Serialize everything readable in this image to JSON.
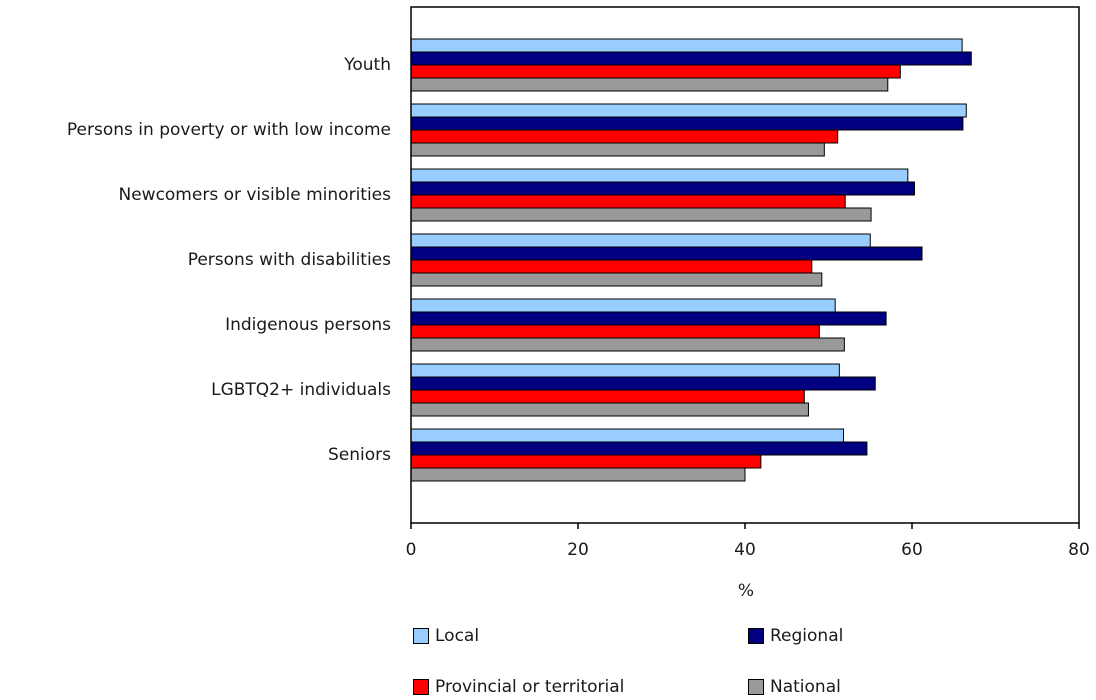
{
  "chart_data": {
    "type": "bar",
    "orientation": "horizontal",
    "categories": [
      "Youth",
      "Persons in poverty or with low income",
      "Newcomers or visible minorities",
      "Persons with disabilities",
      "Indigenous persons",
      "LGBTQ2+ individuals",
      "Seniors"
    ],
    "series": [
      {
        "name": "Local",
        "color": "#99ccff",
        "values": [
          66.0,
          66.5,
          59.5,
          55.0,
          50.8,
          51.3,
          51.8
        ]
      },
      {
        "name": "Regional",
        "color": "#000080",
        "values": [
          67.1,
          66.1,
          60.3,
          61.2,
          56.9,
          55.6,
          54.6
        ]
      },
      {
        "name": "Provincial or territorial",
        "color": "#ff0000",
        "values": [
          58.6,
          51.1,
          52.0,
          48.0,
          48.9,
          47.1,
          41.9
        ]
      },
      {
        "name": "National",
        "color": "#999999",
        "values": [
          57.1,
          49.5,
          55.1,
          49.2,
          51.9,
          47.6,
          40.0
        ]
      }
    ],
    "xlim": [
      0,
      80
    ],
    "xticks": [
      0,
      20,
      40,
      60,
      80
    ],
    "xlabel": "%",
    "ylabel": "",
    "title": "",
    "grid": false,
    "legend_position": "bottom"
  }
}
